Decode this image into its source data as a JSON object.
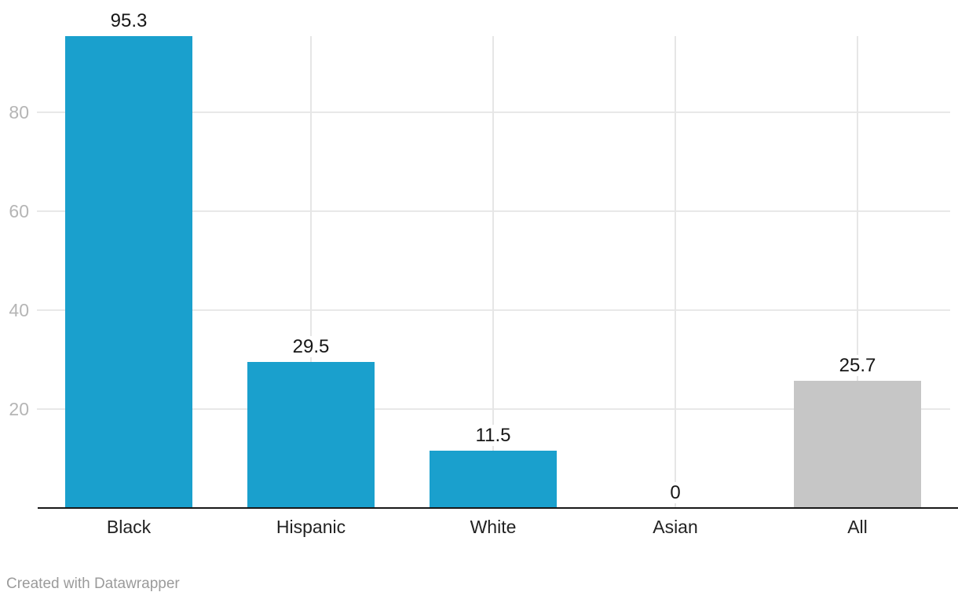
{
  "chart_data": {
    "type": "bar",
    "categories": [
      "Black",
      "Hispanic",
      "White",
      "Asian",
      "All"
    ],
    "values": [
      95.3,
      29.5,
      11.5,
      0,
      25.7
    ],
    "value_labels": [
      "95.3",
      "29.5",
      "11.5",
      "0",
      "25.7"
    ],
    "bar_colors": [
      "#1aa0cd",
      "#1aa0cd",
      "#1aa0cd",
      "#1aa0cd",
      "#c6c6c6"
    ],
    "title": "",
    "xlabel": "",
    "ylabel": "",
    "ylim": [
      0,
      95.3
    ],
    "yticks": [
      20,
      40,
      60,
      80
    ],
    "ytick_labels": [
      "20",
      "40",
      "60",
      "80"
    ],
    "grid": "horizontal value gridlines + vertical category-center gridlines",
    "legend_position": "none"
  },
  "colors": {
    "bar_primary": "#1aa0cd",
    "bar_neutral": "#c6c6c6",
    "gridline_horizontal": "#e8e8e8",
    "gridline_vertical": "#e6e6e6",
    "baseline": "#181818",
    "tick_label": "#b5b5b5",
    "category_label": "#222222",
    "value_label": "#161616",
    "attribution_text": "#9b9b9b",
    "background": "#ffffff"
  },
  "footer": {
    "attribution": "Created with Datawrapper"
  }
}
